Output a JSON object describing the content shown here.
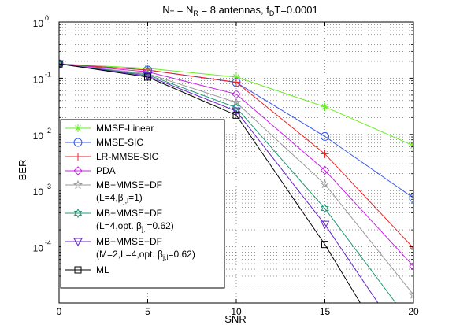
{
  "chart_data": {
    "type": "line",
    "title": {
      "pre": "N",
      "sub1": "T",
      "mid": " = N",
      "sub2": "R",
      "post1": " = 8 antennas, f",
      "sub3": "D",
      "post2": "T=0.0001"
    },
    "xlabel": "SNR",
    "ylabel": "BER",
    "xlim": [
      0,
      20
    ],
    "ylim": [
      1e-05,
      1
    ],
    "yscale": "log",
    "grid": true,
    "x_ticks": [
      0,
      5,
      10,
      15,
      20
    ],
    "x_tick_labels": [
      "0",
      "5",
      "10",
      "15",
      "20"
    ],
    "y_ticks": [
      1,
      0.1,
      0.01,
      0.001,
      0.0001
    ],
    "y_tick_labels": [
      {
        "base": "10",
        "exp": "0"
      },
      {
        "base": "10",
        "exp": "-1"
      },
      {
        "base": "10",
        "exp": "-2"
      },
      {
        "base": "10",
        "exp": "-3"
      },
      {
        "base": "10",
        "exp": "-4"
      }
    ],
    "legend_position": "lower-left",
    "series": [
      {
        "color": "#66ee22",
        "marker": "asterisk",
        "x": [
          0,
          5,
          10,
          15,
          20
        ],
        "y": [
          0.18,
          0.15,
          0.105,
          0.031,
          0.0063
        ],
        "legend": [
          {
            "text": "MMSE-Linear"
          }
        ]
      },
      {
        "color": "#3355ee",
        "marker": "circle",
        "x": [
          0,
          5,
          10,
          15,
          20
        ],
        "y": [
          0.18,
          0.14,
          0.084,
          0.0092,
          0.00074
        ],
        "legend": [
          {
            "text": "MMSE-SIC"
          }
        ]
      },
      {
        "color": "#ee2222",
        "marker": "plus",
        "x": [
          0,
          5,
          10,
          15,
          20
        ],
        "y": [
          0.18,
          0.14,
          0.085,
          0.0045,
          9.5e-05
        ],
        "legend": [
          {
            "text": "LR-MMSE-SIC"
          }
        ]
      },
      {
        "color": "#cc22ee",
        "marker": "diamond",
        "x": [
          0,
          5,
          10,
          15,
          20
        ],
        "y": [
          0.18,
          0.13,
          0.052,
          0.0023,
          4.5e-05
        ],
        "legend": [
          {
            "text": "PDA"
          }
        ]
      },
      {
        "color": "#999999",
        "marker": "star",
        "x": [
          0,
          5,
          10,
          15,
          20
        ],
        "y": [
          0.18,
          0.12,
          0.037,
          0.0013,
          1.4e-05
        ],
        "legend": [
          {
            "text": "MB−MMSE−DF"
          },
          {
            "pre": "(L=4,β",
            "sub": "j,l",
            "post": "=1)"
          }
        ]
      },
      {
        "color": "#229977",
        "marker": "hexagram",
        "x": [
          0,
          5,
          10,
          15,
          19
        ],
        "y": [
          0.18,
          0.115,
          0.03,
          0.00048,
          1e-05
        ],
        "legend": [
          {
            "text": "MB−MMSE−DF"
          },
          {
            "pre": "(L=4,opt. β",
            "sub": "j,l",
            "post": "=0.62)"
          }
        ]
      },
      {
        "color": "#6622cc",
        "marker": "triangle-down",
        "x": [
          0,
          5,
          10,
          15,
          18
        ],
        "y": [
          0.18,
          0.11,
          0.026,
          0.00025,
          1e-05
        ],
        "legend": [
          {
            "text": "MB−MMSE−DF"
          },
          {
            "pre": "(M=2,L=4,opt. β",
            "sub": "j,l",
            "post": "=0.62)"
          }
        ]
      },
      {
        "color": "#000000",
        "marker": "square",
        "x": [
          0,
          5,
          10,
          15,
          17
        ],
        "y": [
          0.18,
          0.105,
          0.022,
          0.00011,
          1e-05
        ],
        "legend": [
          {
            "text": "ML"
          }
        ]
      }
    ]
  }
}
